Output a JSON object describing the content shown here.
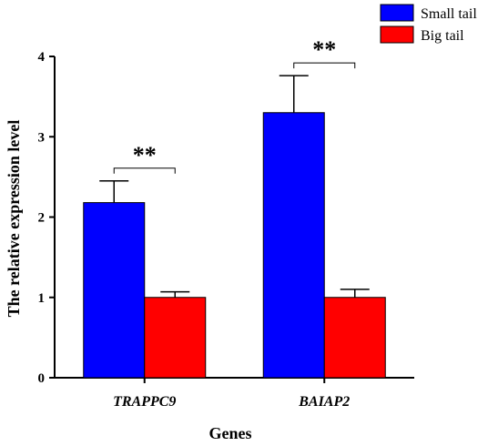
{
  "chart_data": {
    "type": "bar",
    "categories": [
      "TRAPPC9",
      "BAIAP2"
    ],
    "series": [
      {
        "name": "Small tail",
        "color": "#0000ff",
        "values": [
          2.18,
          3.3
        ],
        "errors": [
          0.27,
          0.46
        ]
      },
      {
        "name": "Big tail",
        "color": "#ff0000",
        "values": [
          1.0,
          1.0
        ],
        "errors": [
          0.07,
          0.1
        ]
      }
    ],
    "xlabel": "Genes",
    "ylabel": "The relative expression level",
    "ylim": [
      0,
      4
    ],
    "yticks": [
      "0",
      "1",
      "2",
      "3",
      "4"
    ],
    "significance": [
      "**",
      "**"
    ],
    "grid": false,
    "legend_position": "top-right"
  }
}
